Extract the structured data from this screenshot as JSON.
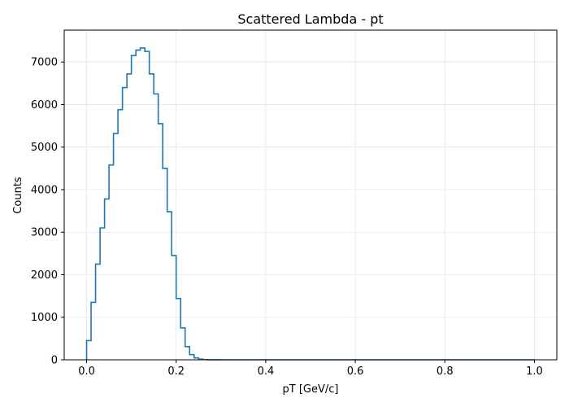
{
  "chart_data": {
    "type": "histogram",
    "title": "Scattered Lambda - pt",
    "xlabel": "pT [GeV/c]",
    "ylabel": "Counts",
    "xlim": [
      -0.05,
      1.05
    ],
    "ylim": [
      0,
      7750
    ],
    "grid": true,
    "line_color": "#1f77b4",
    "x_ticks": [
      {
        "value": 0.0,
        "label": "0.0"
      },
      {
        "value": 0.2,
        "label": "0.2"
      },
      {
        "value": 0.4,
        "label": "0.4"
      },
      {
        "value": 0.6,
        "label": "0.6"
      },
      {
        "value": 0.8,
        "label": "0.8"
      },
      {
        "value": 1.0,
        "label": "1.0"
      }
    ],
    "y_ticks": [
      {
        "value": 0,
        "label": "0"
      },
      {
        "value": 1000,
        "label": "1000"
      },
      {
        "value": 2000,
        "label": "2000"
      },
      {
        "value": 3000,
        "label": "3000"
      },
      {
        "value": 4000,
        "label": "4000"
      },
      {
        "value": 5000,
        "label": "5000"
      },
      {
        "value": 6000,
        "label": "6000"
      },
      {
        "value": 7000,
        "label": "7000"
      }
    ],
    "bin_edges": [
      0.0,
      0.01,
      0.02,
      0.03,
      0.04,
      0.05,
      0.06,
      0.07,
      0.08,
      0.09,
      0.1,
      0.11,
      0.12,
      0.13,
      0.14,
      0.15,
      0.16,
      0.17,
      0.18,
      0.19,
      0.2,
      0.21,
      0.22,
      0.23,
      0.24,
      0.25,
      0.26,
      0.27,
      0.28,
      0.3,
      1.0
    ],
    "values": [
      450,
      1350,
      2250,
      3100,
      3780,
      4580,
      5320,
      5880,
      6400,
      6720,
      7150,
      7280,
      7330,
      7250,
      6720,
      6250,
      5550,
      4500,
      3480,
      2450,
      1440,
      750,
      310,
      120,
      45,
      15,
      5,
      2,
      1,
      0
    ]
  }
}
